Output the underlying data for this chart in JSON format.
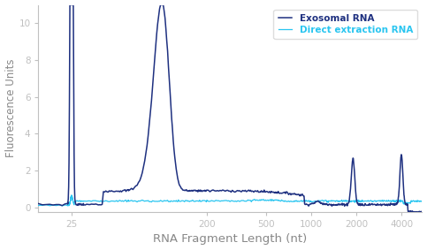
{
  "xlabel": "RNA Fragment Length (nt)",
  "ylabel": "Fluorescence Units",
  "xlim": [
    15,
    5500
  ],
  "ylim": [
    -0.25,
    11
  ],
  "yticks": [
    0,
    2,
    4,
    6,
    8,
    10
  ],
  "xticks": [
    25,
    200,
    500,
    1000,
    2000,
    4000
  ],
  "xtick_labels": [
    "25",
    "200",
    "500",
    "1000",
    "2000",
    "4000"
  ],
  "exosomal_color": "#1e3080",
  "direct_color": "#29c5f0",
  "legend_labels": [
    "Exosomal RNA",
    "Direct extraction RNA"
  ],
  "background_color": "#ffffff",
  "axis_color": "#c0c0c0",
  "text_color": "#aaaaaa",
  "label_color": "#888888"
}
